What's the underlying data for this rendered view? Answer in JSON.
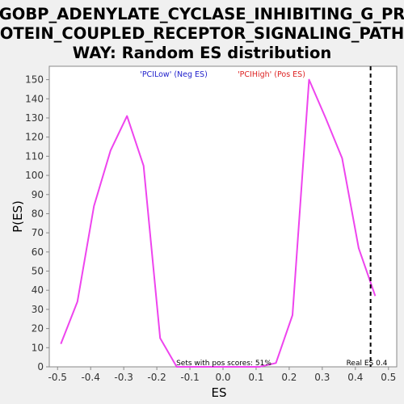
{
  "chart_data": {
    "type": "line",
    "title_lines": [
      "GOBP_ADENYLATE_CYCLASE_INHIBITING_G_PR",
      "OTEIN_COUPLED_RECEPTOR_SIGNALING_PATH",
      "WAY: Random ES distribution"
    ],
    "xlabel": "ES",
    "ylabel": "P(ES)",
    "xlim": [
      -0.525,
      0.525
    ],
    "ylim": [
      0,
      157
    ],
    "xticks": [
      "-0.5",
      "-0.4",
      "-0.3",
      "-0.2",
      "-0.1",
      "0.0",
      "0.1",
      "0.2",
      "0.3",
      "0.4",
      "0.5"
    ],
    "xtick_values": [
      -0.5,
      -0.4,
      -0.3,
      -0.2,
      -0.1,
      0.0,
      0.1,
      0.2,
      0.3,
      0.4,
      0.5
    ],
    "yticks": [
      0,
      10,
      20,
      30,
      40,
      50,
      60,
      70,
      80,
      90,
      100,
      110,
      120,
      130,
      140,
      150
    ],
    "series": [
      {
        "color": "#ee44ee",
        "x": [
          -0.49,
          -0.44,
          -0.39,
          -0.34,
          -0.29,
          -0.24,
          -0.19,
          -0.14,
          -0.09,
          -0.04,
          0.01,
          0.06,
          0.11,
          0.16,
          0.21,
          0.26,
          0.31,
          0.36,
          0.41,
          0.46
        ],
        "values": [
          12,
          34,
          84,
          113,
          131,
          105,
          15,
          0,
          0,
          0,
          0,
          0,
          0,
          2,
          27,
          150,
          130,
          109,
          62,
          37
        ],
        "x_pos": [
          0.176,
          0.228,
          0.276,
          0.326,
          0.376,
          0.426,
          0.476,
          0.526,
          0.576,
          0.626,
          0.676,
          0.726,
          0.776,
          0.826,
          0.876,
          0.926,
          0.976,
          1.026,
          1.076,
          1.126
        ]
      }
    ],
    "legend": [
      {
        "label": "'PCILow' (Neg ES)",
        "color": "#2222cc"
      },
      {
        "label": "'PCIHigh' (Pos ES)",
        "color": "#dd2222"
      }
    ],
    "real_es": 0.446,
    "annotations": {
      "pos_scores": "Sets with pos scores: 51%",
      "real_es": "Real ES 0.4"
    },
    "grid": false,
    "background": "#ffffff",
    "page_background": "#f0f0f0"
  }
}
